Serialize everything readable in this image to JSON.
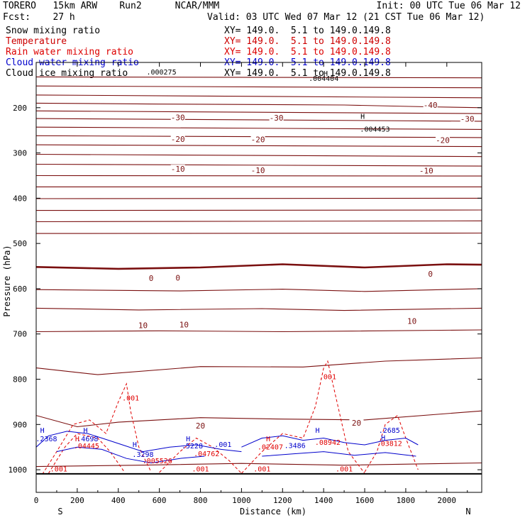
{
  "header": {
    "model": "TORERO   15km ARW    Run2      NCAR/MMM",
    "init": "Init: 00 UTC Tue 06 Mar 12",
    "fcst": "Fcst:    27 h",
    "valid": "Valid: 03 UTC Wed 07 Mar 12 (21 CST Tue 06 Mar 12)"
  },
  "fields": [
    {
      "name": "Snow mixing ratio",
      "xy": "XY= 149.0.  5.1 to 149.0.149.8",
      "color": "#000000"
    },
    {
      "name": "Temperature",
      "xy": "XY= 149.0.  5.1 to 149.0.149.8",
      "color": "#cc0000"
    },
    {
      "name": "Rain water mixing ratio",
      "xy": "XY= 149.0.  5.1 to 149.0.149.8",
      "color": "#dd0000"
    },
    {
      "name": "Cloud water mixing ratio",
      "xy": "XY= 149.0.  5.1 to 149.0.149.8",
      "color": "#0000cc"
    },
    {
      "name": "Cloud ice mixing ratio",
      "xy": "XY= 149.0.  5.1 to 149.0.149.8",
      "color": "#000000"
    }
  ],
  "colors": {
    "temperature": "#7a0f0f",
    "rain": "#e00000",
    "cloud_water": "#0000cc",
    "ice": "#000000",
    "axis": "#000000"
  },
  "chart_data": {
    "type": "line",
    "xlabel": "Distance (km)",
    "ylabel": "Pressure (hPa)",
    "xlim": [
      0,
      2170
    ],
    "ylim": [
      1050,
      100
    ],
    "xticks": [
      0,
      200,
      400,
      600,
      800,
      1000,
      1200,
      1400,
      1600,
      1800,
      2000
    ],
    "yticks": [
      200,
      300,
      400,
      500,
      600,
      700,
      800,
      900,
      1000
    ],
    "end_labels": {
      "left": "S",
      "right": "N"
    },
    "surface_pressure": 1009,
    "temperature_isotherms": [
      {
        "value": -55,
        "x": [
          0,
          2170
        ],
        "p": [
          132,
          134
        ]
      },
      {
        "value": -50,
        "x": [
          0,
          2170
        ],
        "p": [
          152,
          156
        ]
      },
      {
        "value": -45,
        "x": [
          0,
          2170
        ],
        "p": [
          172,
          178
        ]
      },
      {
        "value": -40,
        "x": [
          0,
          600,
          1500,
          1900,
          2170
        ],
        "p": [
          190,
          192,
          194,
          198,
          200
        ]
      },
      {
        "value": -35,
        "x": [
          0,
          2170
        ],
        "p": [
          207,
          213
        ]
      },
      {
        "value": -30,
        "x": [
          0,
          2170
        ],
        "p": [
          224,
          230
        ]
      },
      {
        "value": -25,
        "x": [
          0,
          2170
        ],
        "p": [
          243,
          248
        ]
      },
      {
        "value": -20,
        "x": [
          0,
          2170
        ],
        "p": [
          262,
          266
        ]
      },
      {
        "value": -15,
        "x": [
          0,
          2170
        ],
        "p": [
          282,
          286
        ]
      },
      {
        "value": -10,
        "x": [
          0,
          2170
        ],
        "p": [
          303,
          308
        ]
      },
      {
        "value": -5,
        "x": [
          0,
          2170
        ],
        "p": [
          325,
          329
        ]
      },
      {
        "value": -30,
        "x": [
          0,
          2170
        ],
        "p": [
          350,
          351
        ]
      },
      {
        "value": -25,
        "x": [
          0,
          2170
        ],
        "p": [
          375,
          375
        ]
      },
      {
        "value": -20,
        "x": [
          0,
          2170
        ],
        "p": [
          401,
          400
        ]
      },
      {
        "value": -15,
        "x": [
          0,
          2170
        ],
        "p": [
          427,
          426
        ]
      },
      {
        "value": -10,
        "x": [
          0,
          2170
        ],
        "p": [
          452,
          450
        ]
      },
      {
        "value": -5,
        "x": [
          0,
          2170
        ],
        "p": [
          478,
          477
        ]
      },
      {
        "value": 0,
        "x": [
          0,
          400,
          800,
          1200,
          1600,
          2000,
          2170
        ],
        "p": [
          552,
          556,
          553,
          546,
          553,
          546,
          547
        ]
      },
      {
        "value": 5,
        "x": [
          0,
          700,
          1200,
          1600,
          2170
        ],
        "p": [
          602,
          605,
          601,
          606,
          600
        ]
      },
      {
        "value": 10,
        "x": [
          0,
          500,
          1100,
          1500,
          2170
        ],
        "p": [
          643,
          647,
          644,
          648,
          643
        ]
      },
      {
        "value": 15,
        "x": [
          0,
          600,
          1200,
          2170
        ],
        "p": [
          695,
          693,
          695,
          691
        ]
      },
      {
        "value": 20,
        "x": [
          0,
          300,
          800,
          1300,
          1700,
          2170
        ],
        "p": [
          775,
          790,
          772,
          773,
          760,
          753
        ]
      },
      {
        "value": 25,
        "x": [
          0,
          200,
          400,
          800,
          1200,
          1600,
          2170
        ],
        "p": [
          880,
          905,
          895,
          885,
          888,
          890,
          870
        ]
      },
      {
        "value": 30,
        "x": [
          0,
          500,
          1000,
          1500,
          2170
        ],
        "p": [
          993,
          990,
          986,
          990,
          985
        ]
      }
    ],
    "temperature_labels": [
      {
        "text": "-40",
        "x": 1920,
        "p": 196
      },
      {
        "text": "-30",
        "x": 690,
        "p": 223
      },
      {
        "text": "-30",
        "x": 1170,
        "p": 224
      },
      {
        "text": "-30",
        "x": 2100,
        "p": 226
      },
      {
        "text": "-20",
        "x": 690,
        "p": 271
      },
      {
        "text": "-20",
        "x": 1080,
        "p": 272
      },
      {
        "text": "-20",
        "x": 1980,
        "p": 273
      },
      {
        "text": "-10",
        "x": 690,
        "p": 337
      },
      {
        "text": "-10",
        "x": 1080,
        "p": 340
      },
      {
        "text": "-10",
        "x": 1900,
        "p": 341
      },
      {
        "text": "0",
        "x": 560,
        "p": 578
      },
      {
        "text": "0",
        "x": 690,
        "p": 577
      },
      {
        "text": "0",
        "x": 1920,
        "p": 569
      },
      {
        "text": "10",
        "x": 520,
        "p": 682
      },
      {
        "text": "10",
        "x": 720,
        "p": 681
      },
      {
        "text": "10",
        "x": 1830,
        "p": 673
      },
      {
        "text": "20",
        "x": 800,
        "p": 904
      },
      {
        "text": "20",
        "x": 1560,
        "p": 898
      }
    ],
    "rain_contours": [
      {
        "x": [
          30,
          100,
          180,
          260,
          340,
          400,
          440,
          460,
          500,
          560
        ],
        "p": [
          1010,
          960,
          900,
          890,
          920,
          850,
          810,
          870,
          950,
          1005
        ]
      },
      {
        "x": [
          60,
          140,
          200,
          300,
          360,
          430
        ],
        "p": [
          1008,
          950,
          920,
          930,
          960,
          1005
        ]
      },
      {
        "x": [
          600,
          700,
          780,
          860,
          940,
          1000
        ],
        "p": [
          1006,
          960,
          930,
          950,
          980,
          1008
        ]
      },
      {
        "x": [
          1000,
          1100,
          1200,
          1300,
          1360,
          1400,
          1420,
          1480,
          1520,
          1600
        ],
        "p": [
          1008,
          960,
          920,
          930,
          860,
          775,
          760,
          880,
          960,
          1008
        ]
      },
      {
        "x": [
          1600,
          1660,
          1700,
          1760,
          1800,
          1860
        ],
        "p": [
          1005,
          960,
          900,
          880,
          930,
          1000
        ]
      }
    ],
    "cloud_water_contours": [
      {
        "x": [
          0,
          60,
          150,
          250,
          320,
          420,
          520,
          650,
          780,
          900,
          1000
        ],
        "p": [
          950,
          925,
          915,
          920,
          930,
          945,
          960,
          950,
          945,
          955,
          960
        ]
      },
      {
        "x": [
          100,
          200,
          320,
          440,
          560,
          700,
          820
        ],
        "p": [
          960,
          950,
          955,
          975,
          985,
          975,
          970
        ]
      },
      {
        "x": [
          1000,
          1100,
          1200,
          1300,
          1400,
          1500,
          1600,
          1700,
          1800,
          1860
        ],
        "p": [
          950,
          930,
          925,
          935,
          930,
          940,
          945,
          935,
          930,
          945
        ]
      },
      {
        "x": [
          1100,
          1250,
          1400,
          1550,
          1700,
          1850
        ],
        "p": [
          970,
          965,
          960,
          968,
          962,
          970
        ]
      }
    ],
    "labels": [
      {
        "text": ".000275",
        "x": 610,
        "p": 127,
        "field": "ice"
      },
      {
        "text": ".004404",
        "x": 1400,
        "p": 141,
        "field": "ice"
      },
      {
        "text": ".004453",
        "x": 1650,
        "p": 253,
        "field": "ice"
      },
      {
        "text": "H",
        "x": 1410,
        "p": 130,
        "field": "ice",
        "marker": true
      },
      {
        "text": "H",
        "x": 1590,
        "p": 225,
        "field": "ice",
        "marker": true
      },
      {
        "text": ".001",
        "x": 460,
        "p": 847,
        "field": "rain"
      },
      {
        "text": ".001",
        "x": 1420,
        "p": 800,
        "field": "rain"
      },
      {
        "text": ".001",
        "x": 110,
        "p": 1004,
        "field": "rain"
      },
      {
        "text": ".001",
        "x": 800,
        "p": 1004,
        "field": "rain"
      },
      {
        "text": ".001",
        "x": 1100,
        "p": 1004,
        "field": "rain"
      },
      {
        "text": ".001",
        "x": 1500,
        "p": 1004,
        "field": "rain"
      },
      {
        "text": "H",
        "x": 30,
        "p": 918,
        "field": "cw",
        "marker": true
      },
      {
        "text": ".2368",
        "x": 50,
        "p": 937,
        "field": "cw"
      },
      {
        "text": "H",
        "x": 240,
        "p": 918,
        "field": "cw",
        "marker": true
      },
      {
        "text": ".4698",
        "x": 250,
        "p": 937,
        "field": "cw"
      },
      {
        "text": "H",
        "x": 200,
        "p": 937,
        "field": "rain",
        "marker": true
      },
      {
        "text": ".04445",
        "x": 245,
        "p": 953,
        "field": "rain"
      },
      {
        "text": "H",
        "x": 480,
        "p": 950,
        "field": "cw",
        "marker": true
      },
      {
        "text": ".3298",
        "x": 520,
        "p": 972,
        "field": "cw"
      },
      {
        "text": ".005526",
        "x": 590,
        "p": 986,
        "field": "rain"
      },
      {
        "text": "H",
        "x": 740,
        "p": 937,
        "field": "cw",
        "marker": true
      },
      {
        "text": ".5228",
        "x": 760,
        "p": 953,
        "field": "cw"
      },
      {
        "text": ".04762",
        "x": 830,
        "p": 970,
        "field": "rain"
      },
      {
        "text": ".001",
        "x": 910,
        "p": 950,
        "field": "cw"
      },
      {
        "text": "H",
        "x": 1130,
        "p": 937,
        "field": "rain",
        "marker": true
      },
      {
        "text": ".3486",
        "x": 1260,
        "p": 952,
        "field": "cw"
      },
      {
        "text": ".02407",
        "x": 1140,
        "p": 955,
        "field": "rain"
      },
      {
        "text": "H",
        "x": 1370,
        "p": 918,
        "field": "cw",
        "marker": true
      },
      {
        "text": ".08942",
        "x": 1420,
        "p": 945,
        "field": "rain"
      },
      {
        "text": ".2685",
        "x": 1720,
        "p": 918,
        "field": "cw"
      },
      {
        "text": "H",
        "x": 1690,
        "p": 935,
        "field": "cw",
        "marker": true
      },
      {
        "text": ".03812",
        "x": 1720,
        "p": 947,
        "field": "rain"
      }
    ]
  }
}
